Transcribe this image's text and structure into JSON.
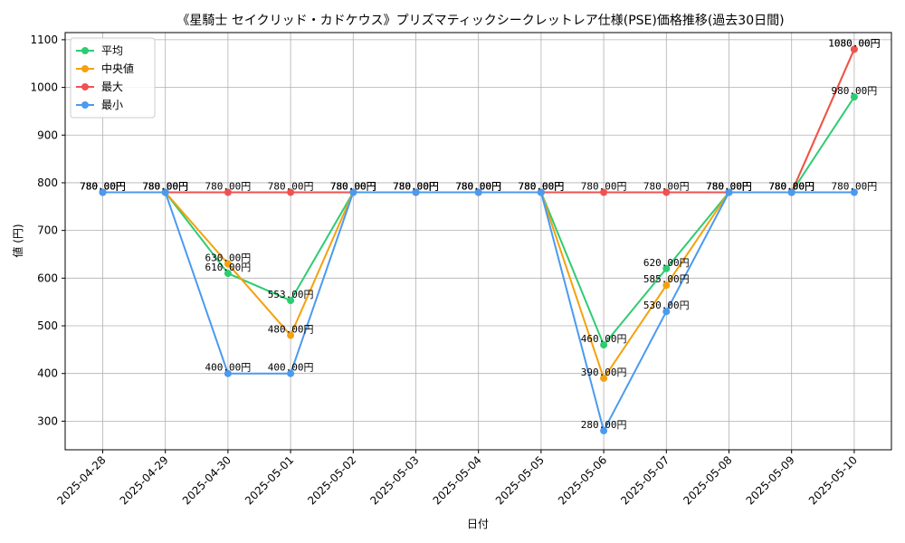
{
  "chart_data": {
    "type": "line",
    "title": "《星騎士 セイクリッド・カドケウス》プリズマティックシークレットレア仕様(PSE)価格推移(過去30日間)",
    "xlabel": "日付",
    "ylabel": "値 (円)",
    "ylim": [
      240,
      1115
    ],
    "yticks": [
      300,
      400,
      500,
      600,
      700,
      800,
      900,
      1000,
      1100
    ],
    "grid": true,
    "legend_position": "top-left",
    "categories": [
      "2025-04-28",
      "2025-04-29",
      "2025-04-30",
      "2025-05-01",
      "2025-05-02",
      "2025-05-03",
      "2025-05-04",
      "2025-05-05",
      "2025-05-06",
      "2025-05-07",
      "2025-05-08",
      "2025-05-09",
      "2025-05-10"
    ],
    "label_suffix": "円",
    "series": [
      {
        "name": "平均",
        "color": "#2ecc71",
        "values": [
          780,
          780,
          610,
          553,
          780,
          780,
          780,
          780,
          460,
          620,
          780,
          780,
          980
        ]
      },
      {
        "name": "中央値",
        "color": "#f5a10e",
        "values": [
          780,
          780,
          630,
          480,
          780,
          780,
          780,
          780,
          390,
          585,
          780,
          780,
          1080
        ]
      },
      {
        "name": "最大",
        "color": "#ef5350",
        "values": [
          780,
          780,
          780,
          780,
          780,
          780,
          780,
          780,
          780,
          780,
          780,
          780,
          1080
        ]
      },
      {
        "name": "最小",
        "color": "#4a9af0",
        "values": [
          780,
          780,
          400,
          400,
          780,
          780,
          780,
          780,
          280,
          530,
          780,
          780,
          780
        ]
      }
    ]
  }
}
